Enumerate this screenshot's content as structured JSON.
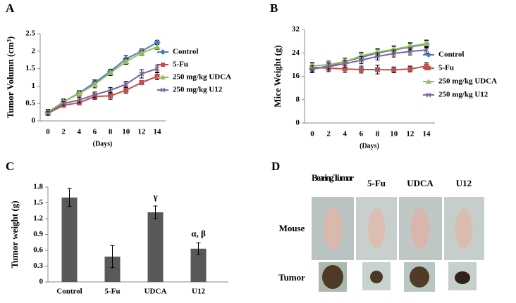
{
  "chart_data": [
    {
      "type": "line",
      "panel": "A",
      "ylabel": "Tumor Volumn (cm³)",
      "xlabel": "(Days)",
      "x": [
        0,
        2,
        4,
        6,
        8,
        10,
        12,
        14
      ],
      "xlim": [
        0,
        14
      ],
      "xticks": [
        0,
        2,
        4,
        6,
        8,
        10,
        12,
        14
      ],
      "ylim": [
        0,
        2.5
      ],
      "yticks": [
        0,
        0.5,
        1,
        1.5,
        2,
        2.5
      ],
      "series": [
        {
          "name": "Control",
          "color": "#4a7ebb",
          "marker": "diamond",
          "values": [
            0.25,
            0.55,
            0.8,
            1.1,
            1.42,
            1.78,
            2.0,
            2.25
          ],
          "errors": [
            0.08,
            0.08,
            0.07,
            0.08,
            0.06,
            0.1,
            0.07,
            0.06
          ]
        },
        {
          "name": "5-Fu",
          "color": "#c0504d",
          "marker": "square",
          "values": [
            0.22,
            0.45,
            0.52,
            0.7,
            0.72,
            0.88,
            1.1,
            1.28
          ],
          "errors": [
            0.06,
            0.06,
            0.06,
            0.08,
            0.1,
            0.09,
            0.06,
            0.1
          ]
        },
        {
          "name": "250 mg/kg UDCA",
          "color": "#9bbb59",
          "marker": "triangle",
          "values": [
            0.25,
            0.55,
            0.78,
            1.05,
            1.38,
            1.7,
            1.95,
            2.12
          ],
          "errors": [
            0.07,
            0.07,
            0.07,
            0.1,
            0.08,
            0.08,
            0.07,
            0.07
          ]
        },
        {
          "name": "250 mg/kg U12",
          "color": "#8064a2",
          "marker": "x",
          "values": [
            0.22,
            0.5,
            0.6,
            0.75,
            0.88,
            1.05,
            1.35,
            1.5
          ],
          "errors": [
            0.06,
            0.06,
            0.08,
            0.08,
            0.08,
            0.09,
            0.12,
            0.1
          ]
        }
      ]
    },
    {
      "type": "line",
      "panel": "B",
      "ylabel": "Mice Weight (g)",
      "xlabel": "(Days)",
      "x": [
        0,
        2,
        4,
        6,
        8,
        10,
        12,
        14
      ],
      "xlim": [
        0,
        14
      ],
      "xticks": [
        0,
        2,
        4,
        6,
        8,
        10,
        12,
        14
      ],
      "ylim": [
        0,
        32
      ],
      "yticks": [
        0,
        8,
        16,
        24,
        32
      ],
      "series": [
        {
          "name": "Control",
          "color": "#4a7ebb",
          "marker": "diamond",
          "values": [
            18.5,
            19.5,
            21,
            22.5,
            24,
            25,
            26,
            27
          ],
          "errors": [
            1.2,
            1.2,
            1.2,
            1.2,
            1.2,
            1.2,
            1.2,
            1.2
          ]
        },
        {
          "name": "5-Fu",
          "color": "#c0504d",
          "marker": "square",
          "values": [
            19,
            18.8,
            18.5,
            18.3,
            18.3,
            18.2,
            18.5,
            19.5
          ],
          "errors": [
            1.5,
            1.2,
            1.2,
            1.2,
            1.5,
            1,
            1,
            1.2
          ]
        },
        {
          "name": "250 mg/kg UDCA",
          "color": "#9bbb59",
          "marker": "triangle",
          "values": [
            19.5,
            20,
            21,
            23,
            24.3,
            25.2,
            26.3,
            27.2
          ],
          "errors": [
            1.2,
            1.2,
            1.2,
            1.2,
            1.2,
            1.2,
            1.2,
            1.2
          ]
        },
        {
          "name": "250 mg/kg U12",
          "color": "#8064a2",
          "marker": "x",
          "values": [
            18.5,
            19.3,
            20.3,
            21.5,
            22.8,
            23.8,
            24.5,
            25
          ],
          "errors": [
            1.2,
            1.2,
            1.2,
            1.2,
            1.2,
            1.2,
            1.2,
            1.2
          ]
        }
      ]
    },
    {
      "type": "bar",
      "panel": "C",
      "ylabel": "Tumor weight (g)",
      "categories": [
        "Control",
        "5-Fu",
        "UDCA",
        "U12"
      ],
      "values": [
        1.6,
        0.48,
        1.32,
        0.63
      ],
      "errors": [
        0.17,
        0.21,
        0.12,
        0.11
      ],
      "annotations": [
        null,
        null,
        "γ",
        "α,  β"
      ],
      "color": "#595959",
      "ylim": [
        0,
        1.8
      ],
      "yticks": [
        0,
        0.3,
        0.6,
        0.9,
        1.2,
        1.5,
        1.8
      ]
    }
  ],
  "photo_panel": {
    "panel": "D",
    "columns": [
      "Bearing Tumor",
      "5-Fu",
      "UDCA",
      "U12"
    ],
    "rows": [
      "Mouse",
      "Tumor"
    ]
  }
}
